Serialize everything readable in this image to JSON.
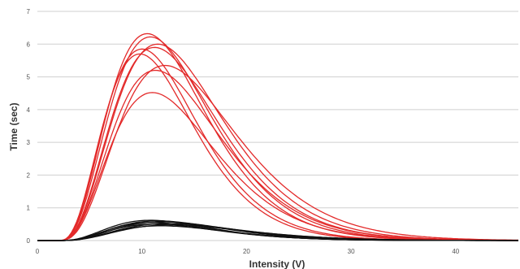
{
  "chart_data": {
    "type": "line",
    "title": "",
    "xlabel": "Intensity (V)",
    "ylabel": "Time (sec)",
    "xlim": [
      0,
      46
    ],
    "ylim": [
      0,
      7
    ],
    "x_ticks": [
      0,
      10,
      20,
      30,
      40
    ],
    "y_ticks": [
      0,
      1,
      2,
      3,
      4,
      5,
      6,
      7
    ],
    "grid": "horizontal",
    "legend": "none",
    "colors": {
      "red_group": "#e32a2a",
      "black_group": "#111111"
    },
    "curve_shape": "asymmetric peak (gamma-like), rising from ~x=2, long right tail to ~x=45",
    "series": [
      {
        "group": "red",
        "peak_x": 10.5,
        "peak_y": 6.32
      },
      {
        "group": "red",
        "peak_x": 10.8,
        "peak_y": 6.22
      },
      {
        "group": "red",
        "peak_x": 11.5,
        "peak_y": 6.0
      },
      {
        "group": "red",
        "peak_x": 10.0,
        "peak_y": 5.85
      },
      {
        "group": "red",
        "peak_x": 11.2,
        "peak_y": 5.9
      },
      {
        "group": "red",
        "peak_x": 9.8,
        "peak_y": 5.7
      },
      {
        "group": "red",
        "peak_x": 12.2,
        "peak_y": 5.35
      },
      {
        "group": "red",
        "peak_x": 11.3,
        "peak_y": 5.2
      },
      {
        "group": "red",
        "peak_x": 11.0,
        "peak_y": 4.52
      },
      {
        "group": "black",
        "peak_x": 10.8,
        "peak_y": 0.62
      },
      {
        "group": "black",
        "peak_x": 11.5,
        "peak_y": 0.6
      },
      {
        "group": "black",
        "peak_x": 12.0,
        "peak_y": 0.57
      },
      {
        "group": "black",
        "peak_x": 11.0,
        "peak_y": 0.55
      },
      {
        "group": "black",
        "peak_x": 12.5,
        "peak_y": 0.52
      },
      {
        "group": "black",
        "peak_x": 11.2,
        "peak_y": 0.5
      },
      {
        "group": "black",
        "peak_x": 12.8,
        "peak_y": 0.48
      },
      {
        "group": "black",
        "peak_x": 11.8,
        "peak_y": 0.45
      }
    ]
  }
}
